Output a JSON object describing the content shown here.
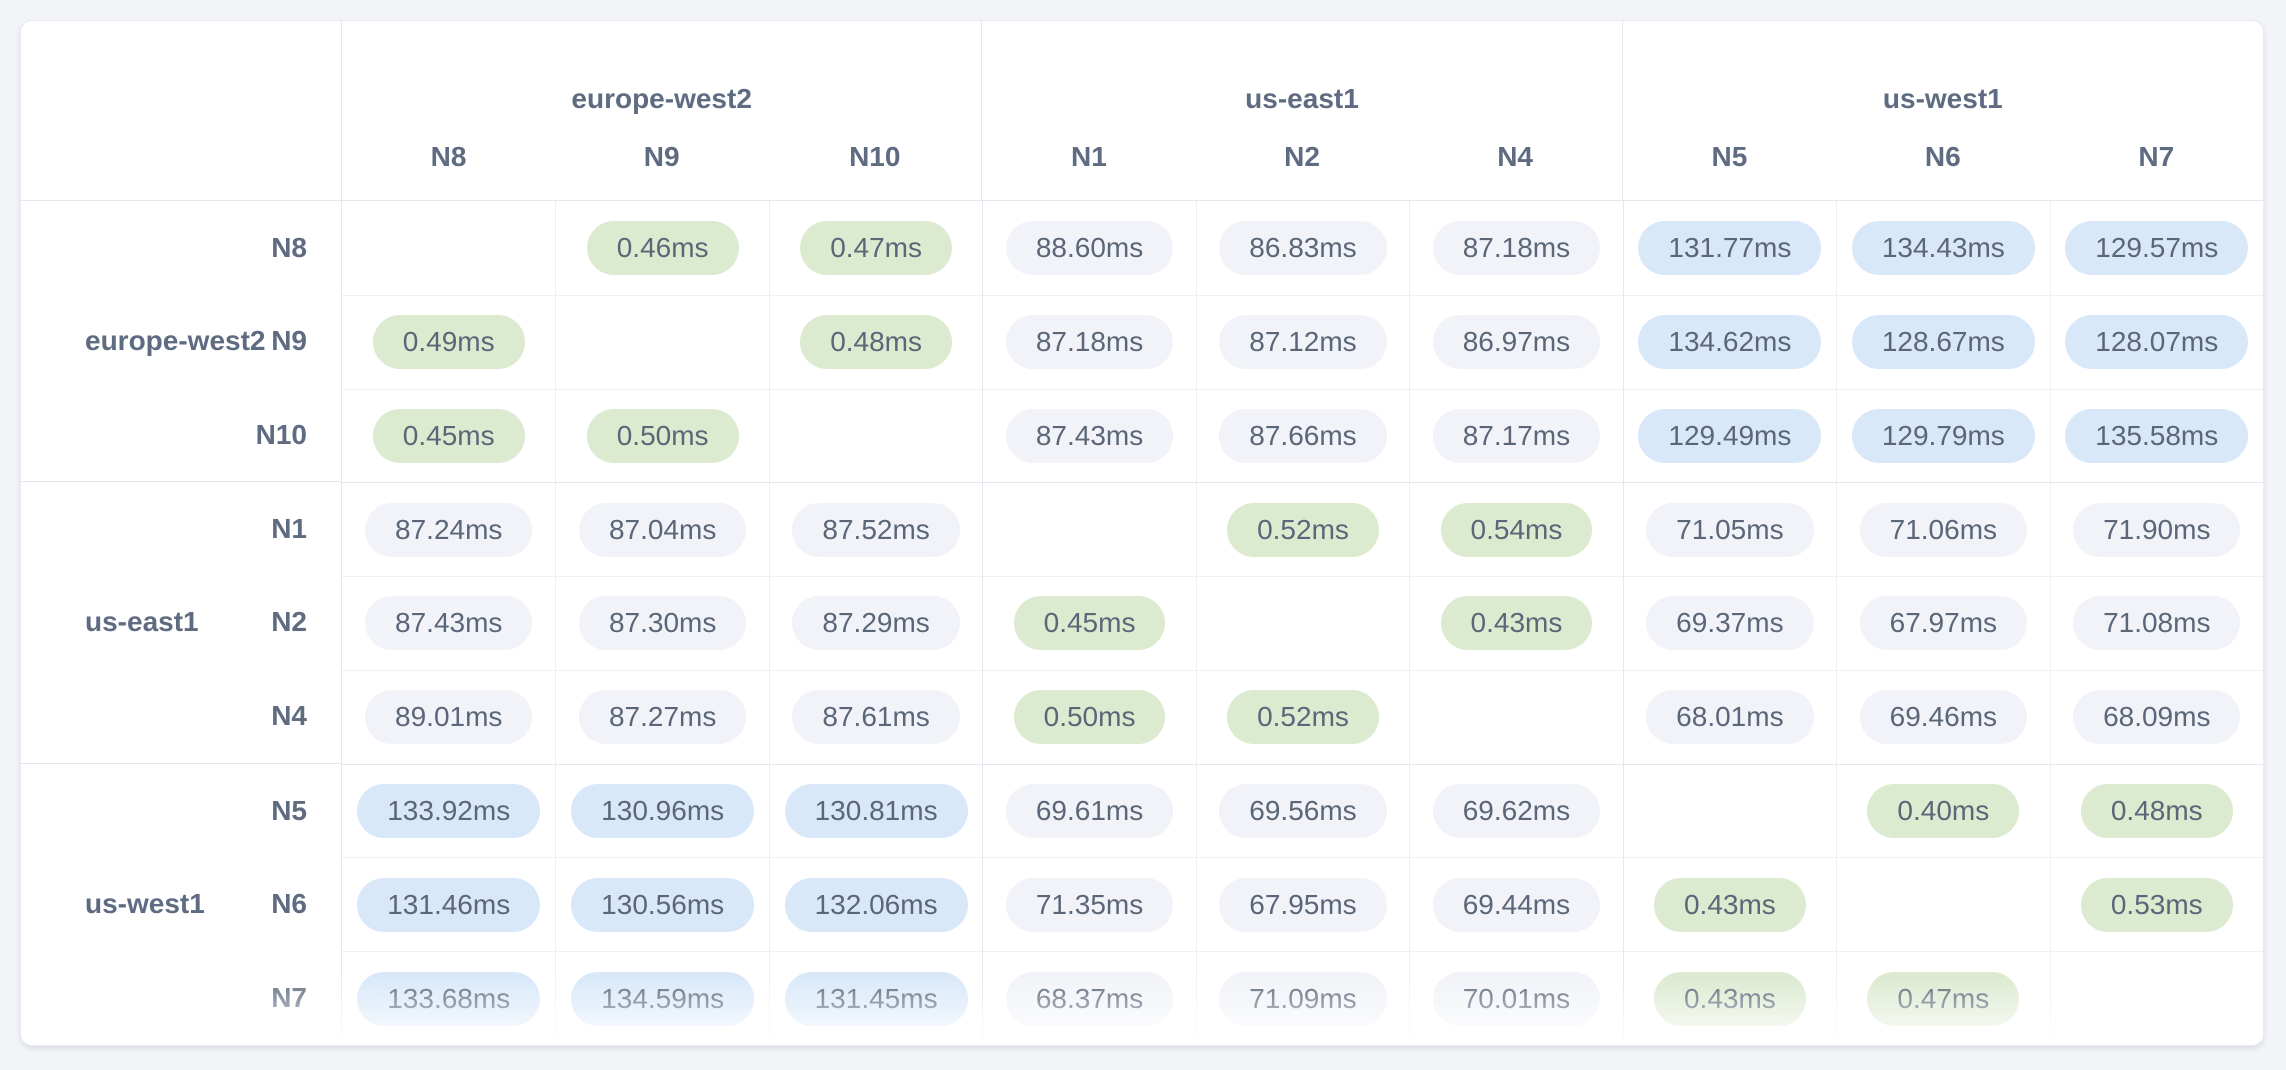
{
  "ui": {
    "colors": {
      "page_bg": "#f2f4f8",
      "card_bg": "#ffffff",
      "pill_fast": "#dcead0",
      "pill_mid": "#f1f3f8",
      "pill_slow": "#d8e8f9",
      "text": "#5b6678",
      "header_text": "#5e6b80",
      "border_strong": "#e3e7ee",
      "border_light": "#edf0f5"
    }
  },
  "chart_data": {
    "type": "heatmap",
    "title": "",
    "unit": "ms",
    "value_format_decimals": 2,
    "color_thresholds": {
      "fast_below_ms": 1,
      "slow_from_ms": 100,
      "fast_color": "#dcead0",
      "medium_color": "#f1f3f8",
      "slow_color": "#d8e8f9"
    },
    "groups": [
      {
        "region": "europe-west2",
        "nodes": [
          "N8",
          "N9",
          "N10"
        ]
      },
      {
        "region": "us-east1",
        "nodes": [
          "N1",
          "N2",
          "N4"
        ]
      },
      {
        "region": "us-west1",
        "nodes": [
          "N5",
          "N6",
          "N7"
        ]
      }
    ],
    "rows": [
      {
        "region": "europe-west2",
        "node": "N8",
        "values": [
          null,
          0.46,
          0.47,
          88.6,
          86.83,
          87.18,
          131.77,
          134.43,
          129.57
        ]
      },
      {
        "region": "europe-west2",
        "node": "N9",
        "values": [
          0.49,
          null,
          0.48,
          87.18,
          87.12,
          86.97,
          134.62,
          128.67,
          128.07
        ]
      },
      {
        "region": "europe-west2",
        "node": "N10",
        "values": [
          0.45,
          0.5,
          null,
          87.43,
          87.66,
          87.17,
          129.49,
          129.79,
          135.58
        ]
      },
      {
        "region": "us-east1",
        "node": "N1",
        "values": [
          87.24,
          87.04,
          87.52,
          null,
          0.52,
          0.54,
          71.05,
          71.06,
          71.9
        ]
      },
      {
        "region": "us-east1",
        "node": "N2",
        "values": [
          87.43,
          87.3,
          87.29,
          0.45,
          null,
          0.43,
          69.37,
          67.97,
          71.08
        ]
      },
      {
        "region": "us-east1",
        "node": "N4",
        "values": [
          89.01,
          87.27,
          87.61,
          0.5,
          0.52,
          null,
          68.01,
          69.46,
          68.09
        ]
      },
      {
        "region": "us-west1",
        "node": "N5",
        "values": [
          133.92,
          130.96,
          130.81,
          69.61,
          69.56,
          69.62,
          null,
          0.4,
          0.48
        ]
      },
      {
        "region": "us-west1",
        "node": "N6",
        "values": [
          131.46,
          130.56,
          132.06,
          71.35,
          67.95,
          69.44,
          0.43,
          null,
          0.53
        ]
      },
      {
        "region": "us-west1",
        "node": "N7",
        "values": [
          133.68,
          134.59,
          131.45,
          68.37,
          71.09,
          70.01,
          0.43,
          0.47,
          null
        ]
      }
    ]
  }
}
